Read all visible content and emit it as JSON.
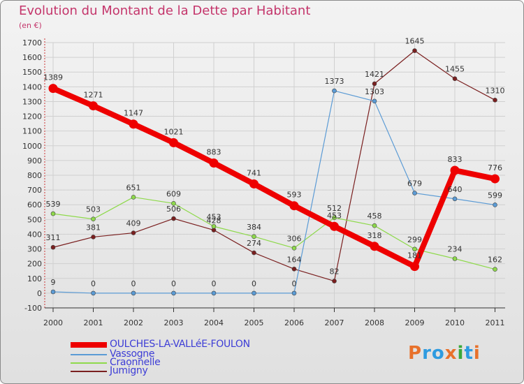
{
  "title": "Evolution du Montant de la Dette par Habitant",
  "subtitle": "(en €)",
  "logo": {
    "text": "Proxiti",
    "letter_colors": [
      "#e8712b",
      "#2e9be0",
      "#2e9be0",
      "#e8712b",
      "#3aa83a",
      "#2e9be0",
      "#e8712b"
    ]
  },
  "chart_data": {
    "type": "line",
    "x": [
      "2000",
      "2001",
      "2002",
      "2003",
      "2004",
      "2005",
      "2006",
      "2007",
      "2008",
      "2009",
      "2010",
      "2011"
    ],
    "ylim": [
      -100,
      1700
    ],
    "yticks": [
      -100,
      0,
      100,
      200,
      300,
      400,
      500,
      600,
      700,
      800,
      900,
      1000,
      1100,
      1200,
      1300,
      1400,
      1500,
      1600,
      1700
    ],
    "grid": true,
    "legend_position": "bottom-left",
    "series": [
      {
        "name": "Jumigny",
        "color": "#7a1f1f",
        "values": [
          311,
          381,
          409,
          506,
          428,
          274,
          164,
          82,
          1421,
          1645,
          1455,
          1310
        ],
        "labels": [
          "311",
          "381",
          "409",
          "506",
          "428",
          "274",
          "164",
          "82",
          "1421",
          "1645",
          "1455",
          "1310"
        ]
      },
      {
        "name": "Craonnelle",
        "color": "#8ed94b",
        "values": [
          539,
          503,
          651,
          609,
          453,
          384,
          306,
          512,
          458,
          299,
          234,
          162
        ],
        "labels": [
          "539",
          "503",
          "651",
          "609",
          "453",
          "384",
          "306",
          "512",
          "458",
          "299",
          "234",
          "162"
        ]
      },
      {
        "name": "Vassogne",
        "color": "#5b9bd5",
        "values": [
          9,
          0,
          0,
          0,
          0,
          0,
          0,
          1373,
          1303,
          679,
          640,
          599
        ],
        "labels": [
          "9",
          "0",
          "0",
          "0",
          "0",
          "0",
          "0",
          "1373",
          "1303",
          "679",
          "640",
          "599"
        ]
      },
      {
        "name": "OULCHES-LA-VALLéE-FOULON",
        "color": "#ee0000",
        "values": [
          1389,
          1271,
          1147,
          1021,
          883,
          741,
          593,
          453,
          318,
          181,
          833,
          776
        ],
        "labels": [
          "1389",
          "1271",
          "1147",
          "1021",
          "883",
          "741",
          "593",
          "453",
          "318",
          "181",
          "833",
          "776"
        ]
      }
    ],
    "legend_order": [
      "OULCHES-LA-VALLéE-FOULON",
      "Vassogne",
      "Craonnelle",
      "Jumigny"
    ]
  }
}
